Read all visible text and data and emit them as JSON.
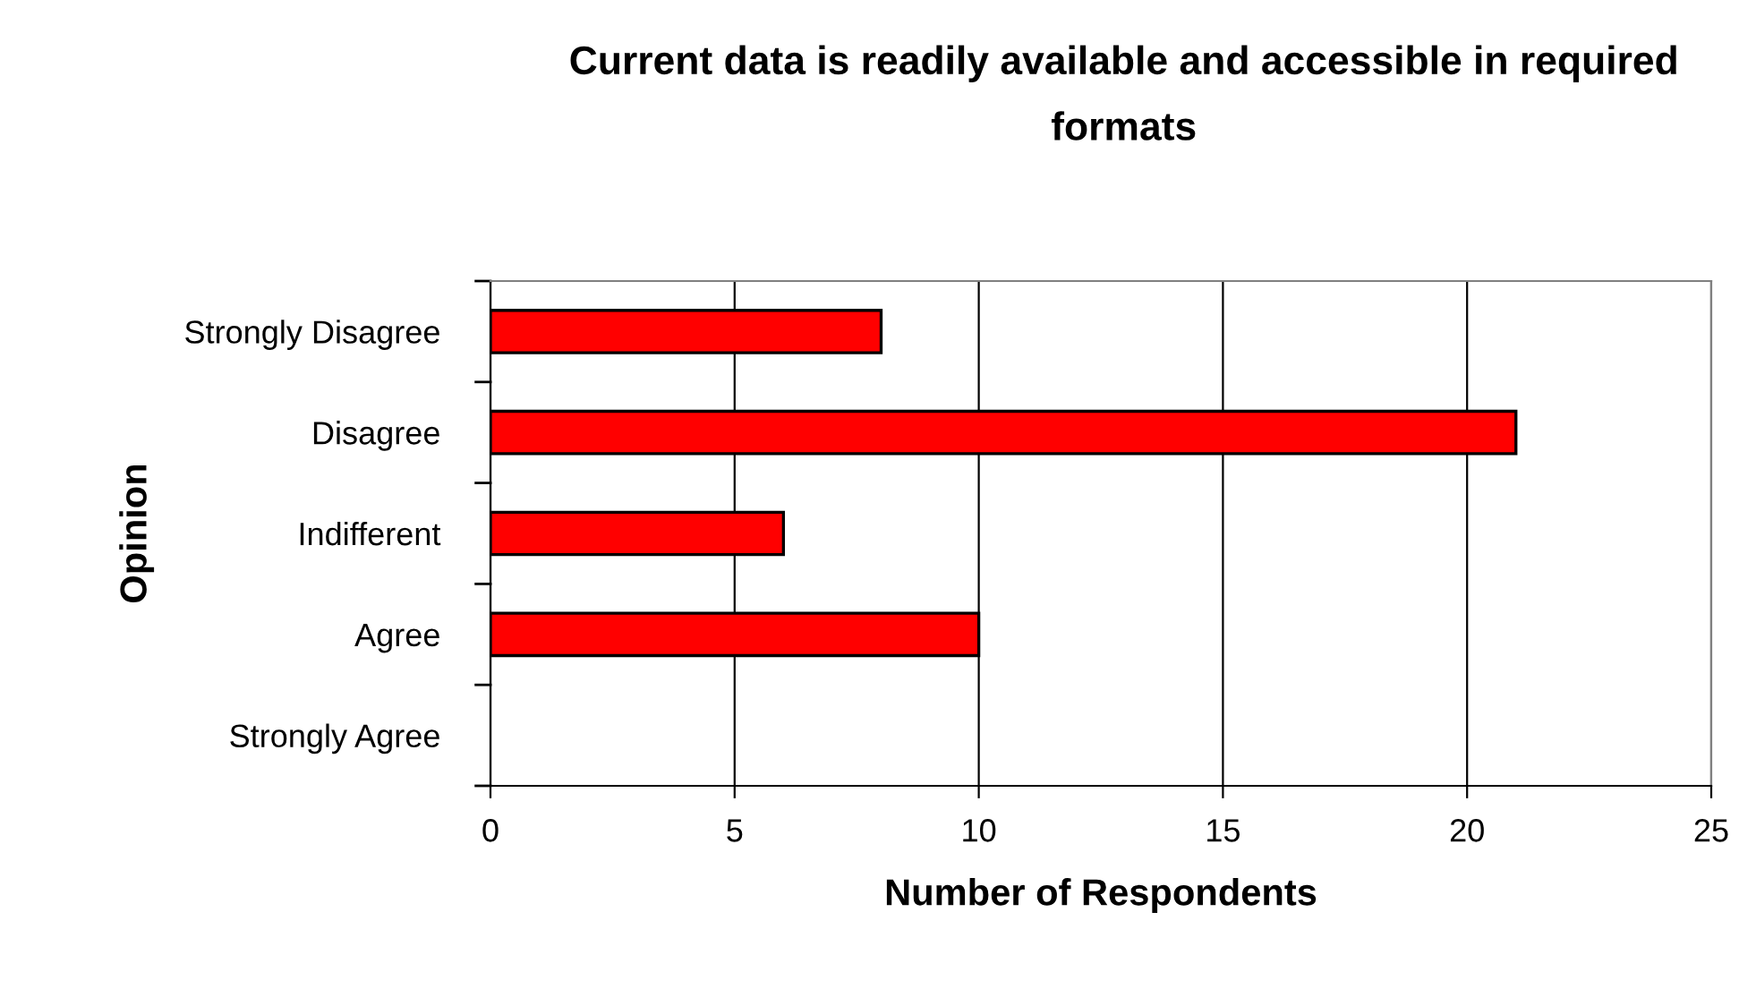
{
  "chart_data": {
    "type": "bar",
    "orientation": "horizontal",
    "title": "Current data is readily available and accessible in required formats",
    "xlabel": "Number of Respondents",
    "ylabel": "Opinion",
    "categories": [
      "Strongly Disagree",
      "Disagree",
      "Indifferent",
      "Agree",
      "Strongly Agree"
    ],
    "values": [
      8,
      21,
      6,
      10,
      0
    ],
    "color": "#ff0000",
    "xlim": [
      0,
      25
    ],
    "xticks": [
      0,
      5,
      10,
      15,
      20,
      25
    ],
    "grid": "x"
  }
}
